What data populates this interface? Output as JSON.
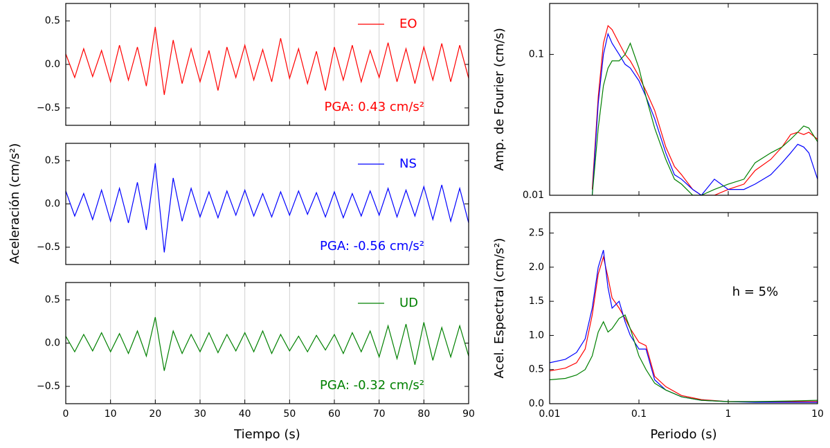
{
  "chart_data": [
    {
      "type": "line",
      "ylabel": "Aceleración (cm/s²)",
      "annotation": "PGA: 0.43 cm/s²",
      "x": [
        0,
        2,
        4,
        6,
        8,
        10,
        12,
        14,
        16,
        18,
        20,
        22,
        24,
        26,
        28,
        30,
        32,
        34,
        36,
        38,
        40,
        42,
        44,
        46,
        48,
        50,
        52,
        54,
        56,
        58,
        60,
        62,
        64,
        66,
        68,
        70,
        72,
        74,
        76,
        78,
        80,
        82,
        84,
        86,
        88,
        90
      ],
      "series": [
        {
          "name": "EO",
          "color": "#ff0000",
          "values": [
            0.12,
            -0.15,
            0.18,
            -0.14,
            0.16,
            -0.2,
            0.22,
            -0.18,
            0.2,
            -0.25,
            0.43,
            -0.35,
            0.28,
            -0.22,
            0.18,
            -0.2,
            0.16,
            -0.3,
            0.2,
            -0.15,
            0.22,
            -0.18,
            0.17,
            -0.2,
            0.3,
            -0.16,
            0.18,
            -0.22,
            0.15,
            -0.3,
            0.2,
            -0.18,
            0.22,
            -0.2,
            0.16,
            -0.15,
            0.25,
            -0.2,
            0.18,
            -0.22,
            0.2,
            -0.18,
            0.24,
            -0.2,
            0.22,
            -0.16
          ]
        }
      ],
      "xlim": [
        0,
        90
      ],
      "ylim": [
        -0.7,
        0.7
      ],
      "yticks": [
        {
          "value": -0.5,
          "label": "−0.5"
        },
        {
          "value": 0,
          "label": "0.0"
        },
        0.5
      ],
      "grid": true
    },
    {
      "type": "line",
      "annotation": "PGA: -0.56 cm/s²",
      "x": [
        0,
        2,
        4,
        6,
        8,
        10,
        12,
        14,
        16,
        18,
        20,
        22,
        24,
        26,
        28,
        30,
        32,
        34,
        36,
        38,
        40,
        42,
        44,
        46,
        48,
        50,
        52,
        54,
        56,
        58,
        60,
        62,
        64,
        66,
        68,
        70,
        72,
        74,
        76,
        78,
        80,
        82,
        84,
        86,
        88,
        90
      ],
      "series": [
        {
          "name": "NS",
          "color": "#0000ff",
          "values": [
            0.15,
            -0.14,
            0.12,
            -0.18,
            0.16,
            -0.2,
            0.18,
            -0.22,
            0.25,
            -0.3,
            0.47,
            -0.56,
            0.3,
            -0.2,
            0.18,
            -0.15,
            0.14,
            -0.16,
            0.15,
            -0.13,
            0.16,
            -0.14,
            0.12,
            -0.15,
            0.14,
            -0.13,
            0.15,
            -0.12,
            0.13,
            -0.15,
            0.14,
            -0.16,
            0.12,
            -0.14,
            0.15,
            -0.13,
            0.18,
            -0.15,
            0.16,
            -0.14,
            0.2,
            -0.18,
            0.22,
            -0.2,
            0.18,
            -0.22
          ]
        }
      ],
      "xlim": [
        0,
        90
      ],
      "ylim": [
        -0.7,
        0.7
      ],
      "yticks": [
        {
          "value": -0.5,
          "label": "−0.5"
        },
        {
          "value": 0,
          "label": "0.0"
        },
        0.5
      ],
      "grid": true
    },
    {
      "type": "line",
      "xlabel": "Tiempo (s)",
      "annotation": "PGA: -0.32 cm/s²",
      "x": [
        0,
        2,
        4,
        6,
        8,
        10,
        12,
        14,
        16,
        18,
        20,
        22,
        24,
        26,
        28,
        30,
        32,
        34,
        36,
        38,
        40,
        42,
        44,
        46,
        48,
        50,
        52,
        54,
        56,
        58,
        60,
        62,
        64,
        66,
        68,
        70,
        72,
        74,
        76,
        78,
        80,
        82,
        84,
        86,
        88,
        90
      ],
      "series": [
        {
          "name": "UD",
          "color": "#008000",
          "values": [
            0.08,
            -0.1,
            0.1,
            -0.09,
            0.12,
            -0.1,
            0.11,
            -0.12,
            0.14,
            -0.15,
            0.3,
            -0.32,
            0.14,
            -0.12,
            0.1,
            -0.1,
            0.12,
            -0.11,
            0.1,
            -0.09,
            0.12,
            -0.1,
            0.14,
            -0.12,
            0.1,
            -0.09,
            0.08,
            -0.1,
            0.09,
            -0.08,
            0.1,
            -0.12,
            0.12,
            -0.1,
            0.14,
            -0.16,
            0.2,
            -0.18,
            0.22,
            -0.25,
            0.24,
            -0.2,
            0.18,
            -0.16,
            0.2,
            -0.15
          ]
        }
      ],
      "xlim": [
        0,
        90
      ],
      "ylim": [
        -0.7,
        0.7
      ],
      "xticks": [
        0,
        10,
        20,
        30,
        40,
        50,
        60,
        70,
        80,
        90
      ],
      "yticks": [
        {
          "value": -0.5,
          "label": "−0.5"
        },
        {
          "value": 0,
          "label": "0.0"
        },
        0.5
      ],
      "grid": true
    },
    {
      "type": "line",
      "ylabel": "Amp. de Fourier (cm/s)",
      "xscale": "log",
      "yscale": "log",
      "x": [
        0.03,
        0.035,
        0.04,
        0.045,
        0.05,
        0.06,
        0.07,
        0.08,
        0.1,
        0.12,
        0.15,
        0.2,
        0.25,
        0.3,
        0.4,
        0.5,
        0.7,
        1,
        1.5,
        2,
        3,
        4,
        5,
        6,
        7,
        8,
        10
      ],
      "series": [
        {
          "color": "#ff0000",
          "values": [
            0.011,
            0.05,
            0.12,
            0.16,
            0.15,
            0.12,
            0.1,
            0.09,
            0.07,
            0.055,
            0.04,
            0.022,
            0.016,
            0.014,
            0.011,
            0.01,
            0.01,
            0.011,
            0.012,
            0.015,
            0.018,
            0.022,
            0.027,
            0.028,
            0.027,
            0.028,
            0.025
          ]
        },
        {
          "color": "#0000ff",
          "values": [
            0.01,
            0.045,
            0.1,
            0.14,
            0.12,
            0.1,
            0.085,
            0.08,
            0.065,
            0.05,
            0.035,
            0.02,
            0.014,
            0.013,
            0.011,
            0.01,
            0.013,
            0.011,
            0.011,
            0.012,
            0.014,
            0.017,
            0.02,
            0.023,
            0.022,
            0.02,
            0.013
          ]
        },
        {
          "color": "#008000",
          "values": [
            0.01,
            0.03,
            0.06,
            0.08,
            0.09,
            0.09,
            0.1,
            0.12,
            0.08,
            0.05,
            0.03,
            0.018,
            0.013,
            0.012,
            0.01,
            0.01,
            0.011,
            0.012,
            0.013,
            0.017,
            0.02,
            0.022,
            0.025,
            0.028,
            0.031,
            0.03,
            0.024
          ]
        }
      ],
      "xlim": [
        0.01,
        10
      ],
      "ylim": [
        0.01,
        0.23
      ],
      "yticks": [
        0.01,
        0.1
      ]
    },
    {
      "type": "line",
      "ylabel": "Acel. Espectral (cm/s²)",
      "xlabel": "Periodo (s)",
      "xscale": "log",
      "annotation": "h = 5%",
      "x": [
        0.01,
        0.015,
        0.02,
        0.025,
        0.03,
        0.035,
        0.04,
        0.045,
        0.05,
        0.06,
        0.07,
        0.08,
        0.1,
        0.12,
        0.15,
        0.2,
        0.3,
        0.5,
        1,
        2,
        5,
        10
      ],
      "series": [
        {
          "color": "#ff0000",
          "values": [
            0.48,
            0.52,
            0.6,
            0.8,
            1.3,
            1.9,
            2.15,
            1.85,
            1.55,
            1.4,
            1.25,
            1.1,
            0.9,
            0.85,
            0.4,
            0.25,
            0.12,
            0.06,
            0.03,
            0.03,
            0.03,
            0.03
          ]
        },
        {
          "color": "#0000ff",
          "values": [
            0.6,
            0.65,
            0.75,
            0.95,
            1.4,
            2.0,
            2.25,
            1.7,
            1.4,
            1.5,
            1.2,
            1.0,
            0.8,
            0.8,
            0.35,
            0.2,
            0.1,
            0.05,
            0.03,
            0.02,
            0.02,
            0.02
          ]
        },
        {
          "color": "#008000",
          "values": [
            0.35,
            0.37,
            0.42,
            0.5,
            0.7,
            1.05,
            1.2,
            1.05,
            1.1,
            1.25,
            1.3,
            1.1,
            0.7,
            0.5,
            0.3,
            0.2,
            0.1,
            0.05,
            0.03,
            0.03,
            0.04,
            0.05
          ]
        }
      ],
      "xlim": [
        0.01,
        10
      ],
      "ylim": [
        0,
        2.8
      ],
      "xticks": [
        0.01,
        0.1,
        1,
        10
      ],
      "yticks": [
        {
          "value": 0,
          "label": "0.0"
        },
        0.5,
        {
          "value": 1,
          "label": "1.0"
        },
        1.5,
        {
          "value": 2,
          "label": "2.0"
        },
        2.5
      ]
    }
  ]
}
